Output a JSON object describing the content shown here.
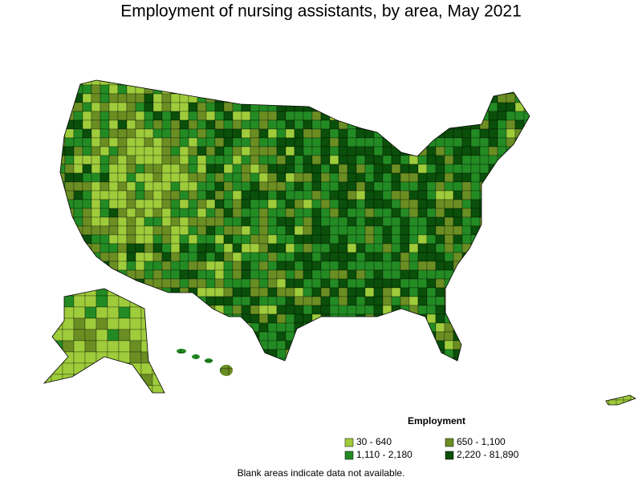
{
  "title": "Employment of nursing assistants, by area, May 2021",
  "legend": {
    "title": "Employment",
    "items": [
      {
        "label": "30 - 640",
        "color": "#9fcc3b"
      },
      {
        "label": "650 - 1,100",
        "color": "#6b8e23"
      },
      {
        "label": "1,110 - 2,180",
        "color": "#238b23"
      },
      {
        "label": "2,220 - 81,890",
        "color": "#0a4f0a"
      }
    ]
  },
  "note": "Blank areas indicate data not available."
}
